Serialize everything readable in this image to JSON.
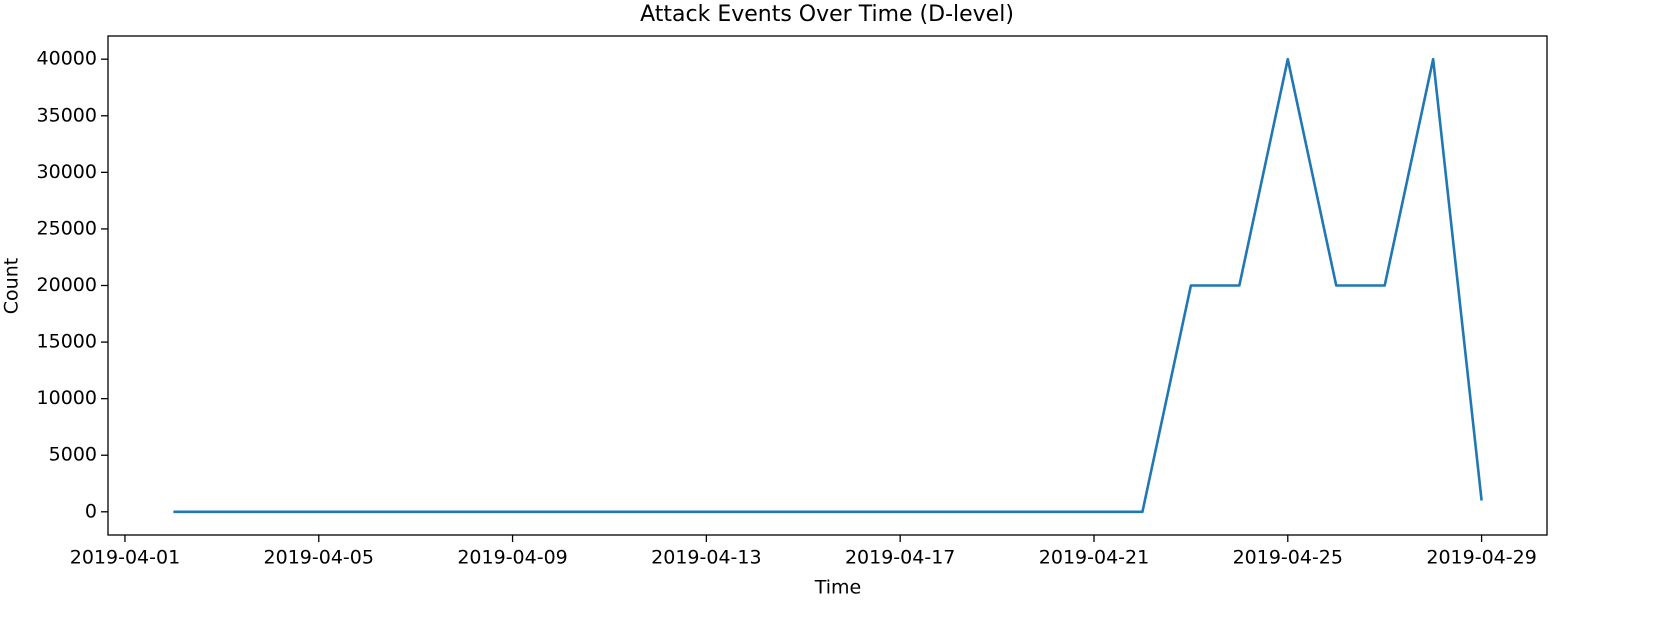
{
  "chart_data": {
    "type": "line",
    "title": "Attack Events Over Time (D-level)",
    "x_label": "Time",
    "y_label": "Count",
    "x": [
      "2019-04-02",
      "2019-04-03",
      "2019-04-04",
      "2019-04-05",
      "2019-04-06",
      "2019-04-07",
      "2019-04-08",
      "2019-04-09",
      "2019-04-10",
      "2019-04-11",
      "2019-04-12",
      "2019-04-13",
      "2019-04-14",
      "2019-04-15",
      "2019-04-16",
      "2019-04-17",
      "2019-04-18",
      "2019-04-19",
      "2019-04-20",
      "2019-04-21",
      "2019-04-22",
      "2019-04-23",
      "2019-04-24",
      "2019-04-25",
      "2019-04-26",
      "2019-04-27",
      "2019-04-28",
      "2019-04-29"
    ],
    "series": [
      {
        "color": "#1f77b4",
        "values": [
          0,
          0,
          0,
          0,
          0,
          0,
          0,
          0,
          0,
          0,
          0,
          0,
          0,
          0,
          0,
          0,
          0,
          0,
          0,
          0,
          0,
          20000,
          20000,
          40000,
          20000,
          20000,
          40000,
          1000
        ]
      }
    ],
    "xlim": [
      "2019-03-31T15:36",
      "2019-04-30T08:24"
    ],
    "xticks": [
      "2019-04-01",
      "2019-04-05",
      "2019-04-09",
      "2019-04-13",
      "2019-04-17",
      "2019-04-21",
      "2019-04-25",
      "2019-04-29"
    ],
    "ylim": [
      -2050,
      42050
    ],
    "yticks": [
      0,
      5000,
      10000,
      15000,
      20000,
      25000,
      30000,
      35000,
      40000
    ],
    "grid": false
  }
}
